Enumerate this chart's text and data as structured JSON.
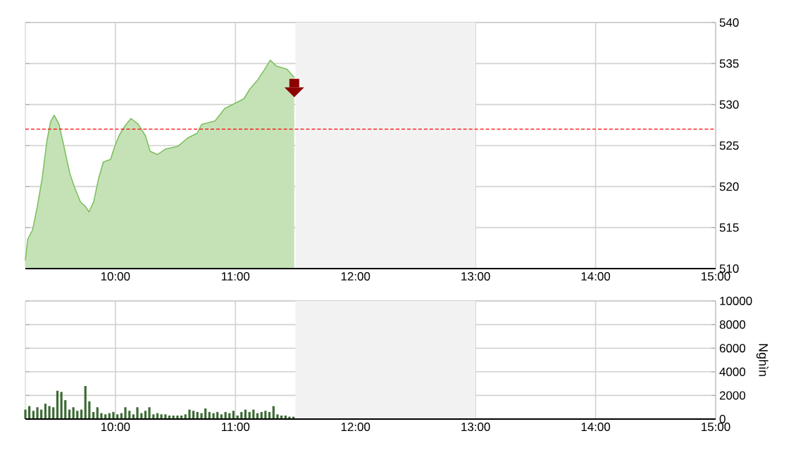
{
  "chart_data": [
    {
      "type": "area",
      "color": "#7fbf5f",
      "xlim": [
        9.25,
        15
      ],
      "ylim": [
        510,
        540
      ],
      "grid": true,
      "x": [
        9.25,
        9.27,
        9.31,
        9.35,
        9.39,
        9.43,
        9.46,
        9.49,
        9.53,
        9.57,
        9.62,
        9.66,
        9.71,
        9.75,
        9.78,
        9.82,
        9.86,
        9.9,
        9.96,
        9.99,
        10.03,
        10.08,
        10.13,
        10.19,
        10.25,
        10.29,
        10.35,
        10.42,
        10.52,
        10.6,
        10.68,
        10.72,
        10.83,
        10.91,
        10.99,
        11.07,
        11.12,
        11.18,
        11.24,
        11.29,
        11.34,
        11.43,
        11.49
      ],
      "values": [
        511.0,
        513.6,
        514.7,
        517.6,
        521.0,
        525.6,
        527.9,
        528.7,
        527.6,
        525.0,
        521.6,
        519.9,
        518.1,
        517.6,
        516.9,
        518.2,
        521.0,
        523.0,
        523.3,
        524.7,
        526.2,
        527.4,
        528.3,
        527.6,
        526.2,
        524.3,
        523.9,
        524.6,
        524.9,
        525.9,
        526.5,
        527.6,
        528.0,
        529.5,
        530.1,
        530.7,
        531.9,
        532.9,
        534.2,
        535.4,
        534.7,
        534.3,
        533.3
      ],
      "xticks": [
        {
          "value": 10,
          "label": "10:00"
        },
        {
          "value": 11,
          "label": "11:00"
        },
        {
          "value": 12,
          "label": "12:00"
        },
        {
          "value": 13,
          "label": "13:00"
        },
        {
          "value": 14,
          "label": "14:00"
        },
        {
          "value": 15,
          "label": "15:00"
        }
      ],
      "yticks": [
        510,
        515,
        520,
        525,
        530,
        535,
        540
      ],
      "ref_lines": [
        {
          "axis": "y",
          "value": 527,
          "color": "#ff0000",
          "line_style": "dashed"
        }
      ],
      "bands": [
        {
          "axis": "x",
          "from": 11.5,
          "to": 13,
          "color": "#f2f2f2"
        }
      ]
    },
    {
      "type": "bar",
      "color": "#3d6b35",
      "xlim": [
        9.25,
        15
      ],
      "ylim": [
        0,
        10000
      ],
      "grid": true,
      "ylabel": "Nghìn",
      "x": [
        9.25,
        9.283,
        9.317,
        9.35,
        9.383,
        9.417,
        9.45,
        9.483,
        9.517,
        9.55,
        9.583,
        9.617,
        9.65,
        9.683,
        9.717,
        9.75,
        9.783,
        9.817,
        9.85,
        9.883,
        9.917,
        9.95,
        9.983,
        10.017,
        10.05,
        10.083,
        10.117,
        10.15,
        10.183,
        10.217,
        10.25,
        10.283,
        10.317,
        10.35,
        10.383,
        10.417,
        10.45,
        10.483,
        10.517,
        10.55,
        10.583,
        10.617,
        10.65,
        10.683,
        10.717,
        10.75,
        10.783,
        10.817,
        10.85,
        10.883,
        10.917,
        10.95,
        10.983,
        11.017,
        11.05,
        11.083,
        11.117,
        11.15,
        11.183,
        11.217,
        11.25,
        11.283,
        11.317,
        11.35,
        11.383,
        11.417,
        11.45,
        11.483
      ],
      "values": [
        800,
        1100,
        700,
        1000,
        800,
        1300,
        1100,
        1000,
        2400,
        2300,
        1600,
        800,
        1000,
        700,
        800,
        2800,
        1500,
        600,
        1000,
        500,
        400,
        500,
        600,
        400,
        500,
        1000,
        700,
        400,
        1000,
        500,
        700,
        1000,
        400,
        500,
        400,
        400,
        300,
        300,
        300,
        300,
        400,
        800,
        700,
        600,
        500,
        900,
        600,
        500,
        600,
        400,
        600,
        500,
        700,
        300,
        600,
        800,
        600,
        800,
        500,
        600,
        700,
        600,
        1100,
        400,
        300,
        300,
        200,
        200
      ],
      "xticks": [
        {
          "value": 10,
          "label": "10:00"
        },
        {
          "value": 11,
          "label": "11:00"
        },
        {
          "value": 12,
          "label": "12:00"
        },
        {
          "value": 13,
          "label": "13:00"
        },
        {
          "value": 14,
          "label": "14:00"
        },
        {
          "value": 15,
          "label": "15:00"
        }
      ],
      "yticks": [
        0,
        2000,
        4000,
        6000,
        8000,
        10000
      ],
      "bands": [
        {
          "axis": "x",
          "from": 11.5,
          "to": 13,
          "color": "#f2f2f2"
        }
      ]
    }
  ]
}
